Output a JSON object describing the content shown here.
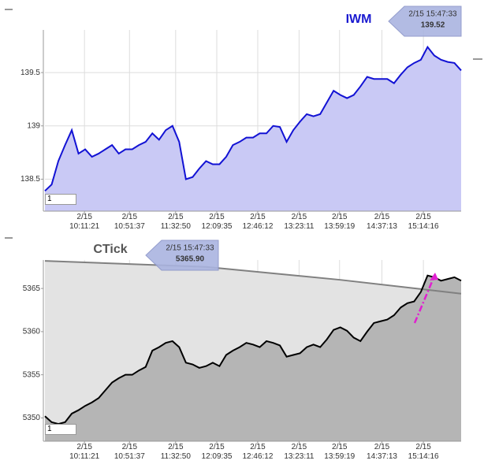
{
  "chart_data": [
    {
      "type": "area",
      "title": "IWM",
      "callout": {
        "time": "2/15 15:47:33",
        "price": "139.52"
      },
      "xlim": [
        9.6,
        15.8
      ],
      "ylim": [
        138.2,
        139.9
      ],
      "yticks": [
        138.5,
        139,
        139.5
      ],
      "xticks": [
        {
          "value": 10.189,
          "label": "2/15\n10:11:21"
        },
        {
          "value": 10.86,
          "label": "2/15\n10:51:37"
        },
        {
          "value": 11.547,
          "label": "2/15\n11:32:50"
        },
        {
          "value": 12.16,
          "label": "2/15\n12:09:35"
        },
        {
          "value": 12.77,
          "label": "2/15\n12:46:12"
        },
        {
          "value": 13.386,
          "label": "2/15\n13:23:11"
        },
        {
          "value": 13.989,
          "label": "2/15\n13:59:19"
        },
        {
          "value": 14.62,
          "label": "2/15\n14:37:13"
        },
        {
          "value": 15.238,
          "label": "2/15\n15:14:16"
        }
      ],
      "grid": true,
      "series": [
        {
          "color": "#1212d4",
          "fill": "#c9c9f5",
          "x": [
            9.6,
            9.7,
            9.8,
            9.9,
            10.0,
            10.1,
            10.2,
            10.3,
            10.4,
            10.5,
            10.6,
            10.7,
            10.8,
            10.9,
            11.0,
            11.1,
            11.2,
            11.3,
            11.4,
            11.5,
            11.6,
            11.7,
            11.8,
            11.9,
            12.0,
            12.1,
            12.2,
            12.3,
            12.4,
            12.5,
            12.6,
            12.7,
            12.8,
            12.9,
            13.0,
            13.1,
            13.2,
            13.3,
            13.4,
            13.5,
            13.6,
            13.7,
            13.8,
            13.9,
            14.0,
            14.1,
            14.2,
            14.3,
            14.4,
            14.5,
            14.6,
            14.7,
            14.8,
            14.9,
            15.0,
            15.1,
            15.2,
            15.3,
            15.4,
            15.5,
            15.6,
            15.7,
            15.8
          ],
          "values": [
            138.39,
            138.45,
            138.67,
            138.82,
            138.96,
            138.74,
            138.78,
            138.71,
            138.74,
            138.78,
            138.82,
            138.74,
            138.78,
            138.78,
            138.82,
            138.85,
            138.93,
            138.87,
            138.96,
            139.0,
            138.85,
            138.5,
            138.52,
            138.6,
            138.67,
            138.64,
            138.64,
            138.71,
            138.82,
            138.85,
            138.89,
            138.89,
            138.93,
            138.93,
            139.0,
            138.99,
            138.85,
            138.96,
            139.04,
            139.11,
            139.09,
            139.11,
            139.22,
            139.33,
            139.29,
            139.26,
            139.29,
            139.37,
            139.46,
            139.44,
            139.44,
            139.44,
            139.4,
            139.48,
            139.55,
            139.59,
            139.62,
            139.74,
            139.66,
            139.62,
            139.6,
            139.59,
            139.52
          ]
        }
      ]
    },
    {
      "type": "area",
      "title": "CTick",
      "callout": {
        "time": "2/15 15:47:33",
        "price": "5365.90"
      },
      "xlim": [
        9.6,
        15.8
      ],
      "ylim": [
        5347.3,
        5368.3
      ],
      "yticks": [
        5350,
        5355,
        5360,
        5365
      ],
      "xticks": [
        {
          "value": 10.189,
          "label": "2/15\n10:11:21"
        },
        {
          "value": 10.86,
          "label": "2/15\n10:51:37"
        },
        {
          "value": 11.547,
          "label": "2/15\n11:32:50"
        },
        {
          "value": 12.16,
          "label": "2/15\n12:09:35"
        },
        {
          "value": 12.77,
          "label": "2/15\n12:46:12"
        },
        {
          "value": 13.386,
          "label": "2/15\n13:23:11"
        },
        {
          "value": 13.989,
          "label": "2/15\n13:59:19"
        },
        {
          "value": 14.62,
          "label": "2/15\n14:37:13"
        },
        {
          "value": 15.238,
          "label": "2/15\n15:14:16"
        }
      ],
      "grid": true,
      "series": [
        {
          "color": "#808080",
          "fill": "#e3e3e3",
          "x": [
            9.6,
            12.0,
            14.0,
            15.8
          ],
          "values": [
            5368.2,
            5367.5,
            5366.0,
            5364.4
          ]
        },
        {
          "color": "#000000",
          "fill": "#b5b5b5",
          "x": [
            9.6,
            9.7,
            9.8,
            9.9,
            10.0,
            10.1,
            10.2,
            10.3,
            10.4,
            10.5,
            10.6,
            10.7,
            10.8,
            10.9,
            11.0,
            11.1,
            11.2,
            11.3,
            11.4,
            11.5,
            11.6,
            11.7,
            11.8,
            11.9,
            12.0,
            12.1,
            12.2,
            12.3,
            12.4,
            12.5,
            12.6,
            12.7,
            12.8,
            12.9,
            13.0,
            13.1,
            13.2,
            13.3,
            13.4,
            13.5,
            13.6,
            13.7,
            13.8,
            13.9,
            14.0,
            14.1,
            14.2,
            14.3,
            14.4,
            14.5,
            14.6,
            14.7,
            14.8,
            14.9,
            15.0,
            15.1,
            15.2,
            15.3,
            15.4,
            15.5,
            15.6,
            15.7,
            15.8
          ],
          "values": [
            5350.2,
            5349.5,
            5349.3,
            5349.5,
            5350.5,
            5350.9,
            5351.4,
            5351.8,
            5352.3,
            5353.2,
            5354.1,
            5354.6,
            5355.0,
            5355.0,
            5355.5,
            5355.9,
            5357.8,
            5358.2,
            5358.7,
            5358.9,
            5358.2,
            5356.4,
            5356.2,
            5355.8,
            5356.0,
            5356.4,
            5356.0,
            5357.3,
            5357.8,
            5358.2,
            5358.7,
            5358.5,
            5358.2,
            5358.9,
            5358.7,
            5358.4,
            5357.1,
            5357.3,
            5357.5,
            5358.2,
            5358.5,
            5358.2,
            5359.1,
            5360.2,
            5360.5,
            5360.1,
            5359.3,
            5358.9,
            5360.0,
            5361.0,
            5361.2,
            5361.4,
            5361.9,
            5362.8,
            5363.3,
            5363.5,
            5364.6,
            5366.5,
            5366.3,
            5365.9,
            5366.1,
            5366.3,
            5365.9
          ]
        }
      ]
    }
  ],
  "inputs": [
    "1",
    "1"
  ]
}
